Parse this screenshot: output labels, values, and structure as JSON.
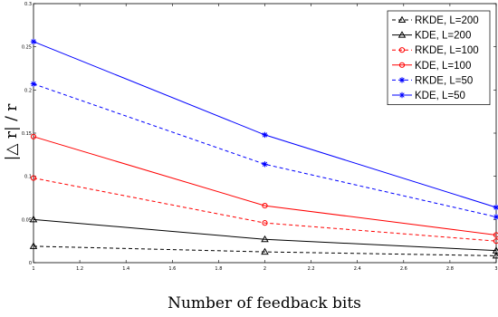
{
  "chart_data": {
    "type": "line",
    "xlabel": "Number of feedback bits",
    "ylabel": "|△ r| / r",
    "xlim": [
      1,
      3
    ],
    "ylim": [
      0,
      0.3
    ],
    "xticks": [
      "1",
      "1.2",
      "1.4",
      "1.6",
      "1.8",
      "2",
      "2.2",
      "2.4",
      "2.6",
      "2.8",
      "3"
    ],
    "yticks": [
      "0",
      "0.05",
      "0.1",
      "0.15",
      "0.2",
      "0.25",
      "0.3"
    ],
    "grid": false,
    "legend_position": "top-right",
    "series": [
      {
        "name": "RKDE, L=200",
        "x": [
          1,
          2,
          3
        ],
        "values": [
          0.019,
          0.0125,
          0.008
        ],
        "color": "#000000",
        "dashed": true,
        "marker": "triangle"
      },
      {
        "name": "KDE, L=200",
        "x": [
          1,
          2,
          3
        ],
        "values": [
          0.05,
          0.027,
          0.014
        ],
        "color": "#000000",
        "dashed": false,
        "marker": "triangle"
      },
      {
        "name": "RKDE, L=100",
        "x": [
          1,
          2,
          3
        ],
        "values": [
          0.098,
          0.046,
          0.025
        ],
        "color": "#ff0000",
        "dashed": true,
        "marker": "circle"
      },
      {
        "name": "KDE, L=100",
        "x": [
          1,
          2,
          3
        ],
        "values": [
          0.146,
          0.066,
          0.032
        ],
        "color": "#ff0000",
        "dashed": false,
        "marker": "circle"
      },
      {
        "name": "RKDE, L=50",
        "x": [
          1,
          2,
          3
        ],
        "values": [
          0.207,
          0.114,
          0.053
        ],
        "color": "#0000ff",
        "dashed": true,
        "marker": "star"
      },
      {
        "name": "KDE, L=50",
        "x": [
          1,
          2,
          3
        ],
        "values": [
          0.256,
          0.148,
          0.064
        ],
        "color": "#0000ff",
        "dashed": false,
        "marker": "star"
      }
    ]
  }
}
